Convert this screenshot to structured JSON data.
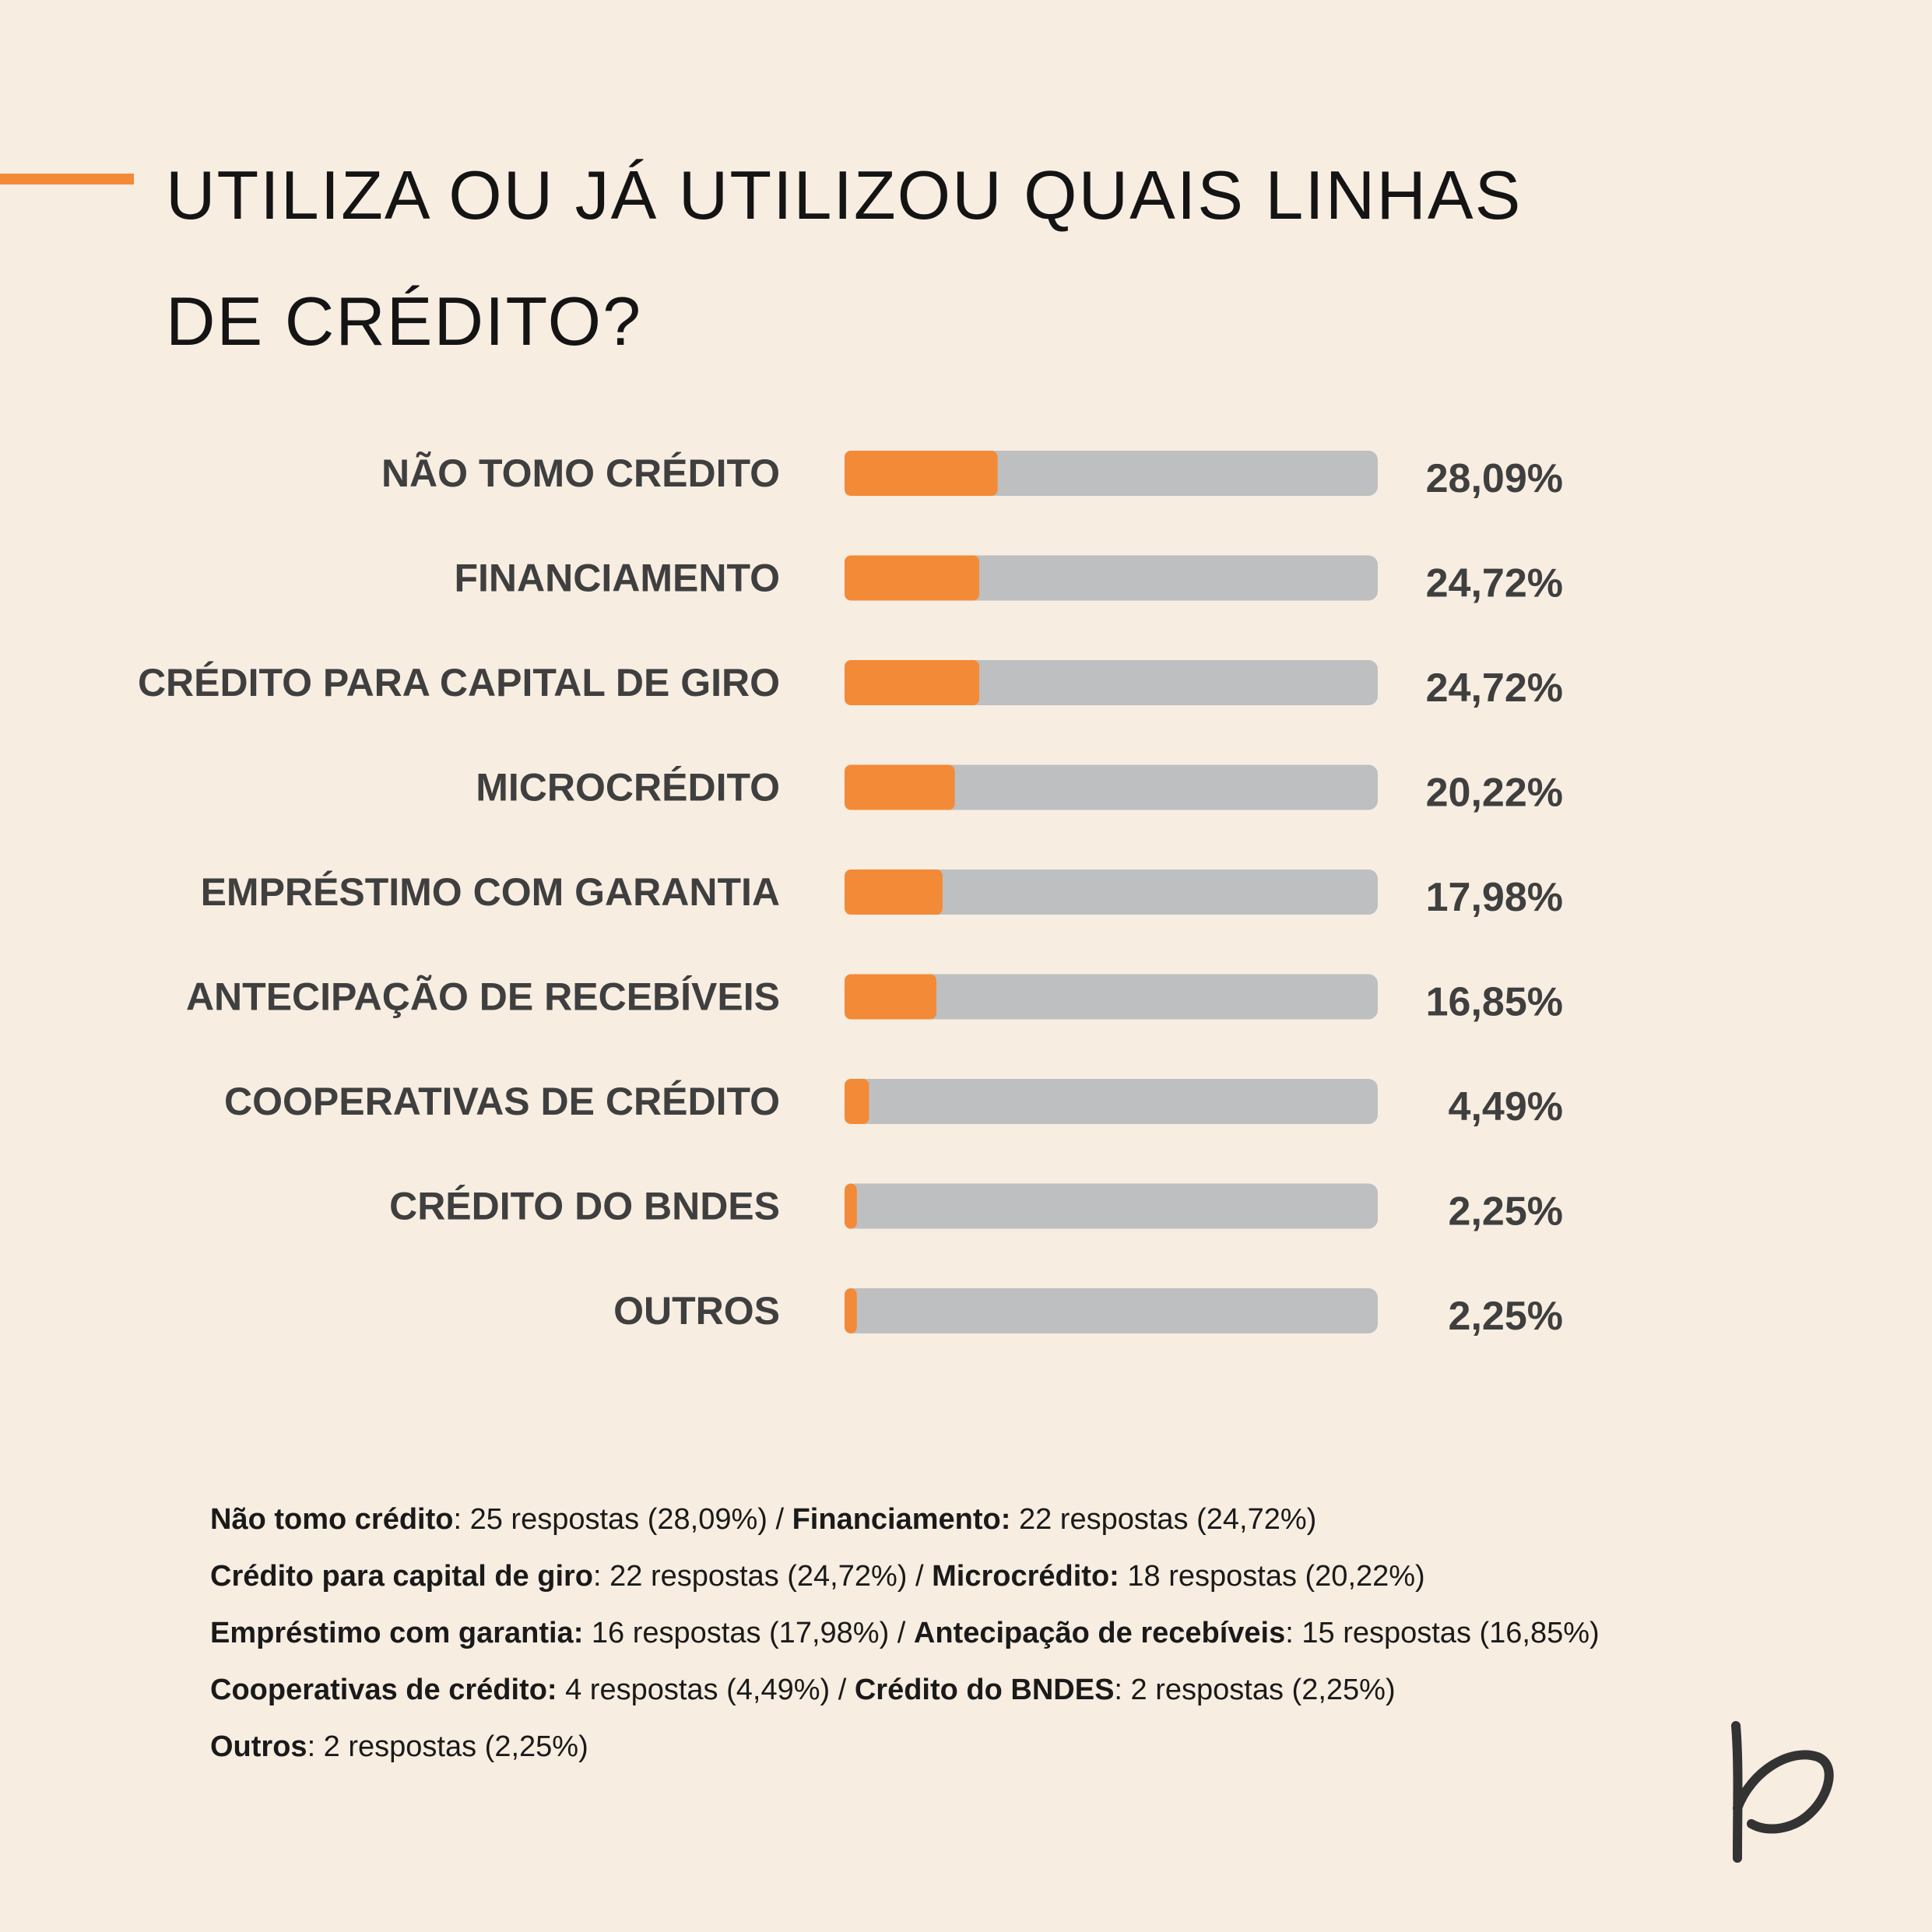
{
  "title": {
    "line1": "UTILIZA OU JÁ UTILIZOU QUAIS LINHAS",
    "line2": "DE CRÉDITO?"
  },
  "colors": {
    "background": "#f7ede1",
    "accent": "#f38a37",
    "track": "#bebfc1",
    "label": "#3f3f3f"
  },
  "chart_data": {
    "type": "bar",
    "orientation": "horizontal",
    "categories": [
      "NÃO TOMO CRÉDITO",
      "FINANCIAMENTO",
      "CRÉDITO PARA CAPITAL DE GIRO",
      "MICROCRÉDITO",
      "EMPRÉSTIMO COM GARANTIA",
      "ANTECIPAÇÃO DE RECEBÍVEIS",
      "COOPERATIVAS DE CRÉDITO",
      "CRÉDITO DO BNDES",
      "OUTROS"
    ],
    "values": [
      28.09,
      24.72,
      24.72,
      20.22,
      17.98,
      16.85,
      4.49,
      2.25,
      2.25
    ],
    "value_labels": [
      "28,09%",
      "24,72%",
      "24,72%",
      "20,22%",
      "17,98%",
      "16,85%",
      "4,49%",
      "2,25%",
      "2,25%"
    ],
    "xlim": [
      0,
      100
    ],
    "grid": false,
    "legend": "none"
  },
  "footnotes": [
    [
      {
        "name": "Não tomo crédito",
        "sep": ":",
        "text": " 25 respostas (28,09%) / "
      },
      {
        "name": "Financiamento:",
        "sep": "",
        "text": " 22 respostas (24,72%)"
      }
    ],
    [
      {
        "name": "Crédito para capital de giro",
        "sep": ":",
        "text": " 22 respostas (24,72%) / "
      },
      {
        "name": "Microcrédito:",
        "sep": "",
        "text": " 18 respostas (20,22%)"
      }
    ],
    [
      {
        "name": "Empréstimo com garantia:",
        "sep": "",
        "text": " 16 respostas (17,98%) / "
      },
      {
        "name": "Antecipação de recebíveis",
        "sep": ":",
        "text": " 15 respostas (16,85%)"
      }
    ],
    [
      {
        "name": "Cooperativas de crédito:",
        "sep": "",
        "text": " 4 respostas (4,49%) / "
      },
      {
        "name": "Crédito do BNDES",
        "sep": ":",
        "text": " 2 respostas (2,25%)"
      }
    ],
    [
      {
        "name": "Outros",
        "sep": ":",
        "text": " 2 respostas (2,25%)"
      }
    ]
  ],
  "logo_icon": "p-script-logo"
}
